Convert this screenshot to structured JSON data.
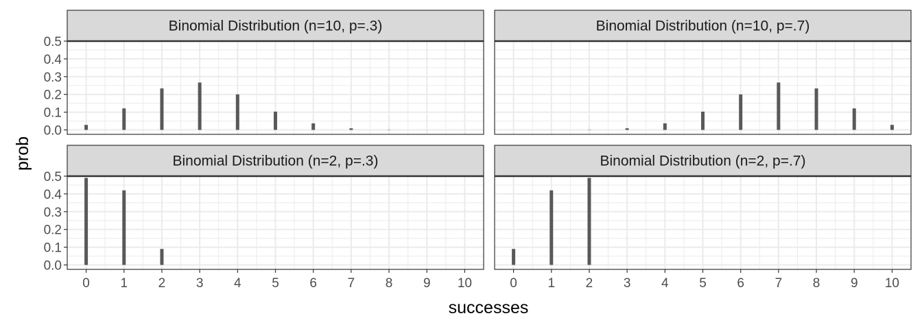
{
  "chart_data": {
    "type": "bar",
    "xlabel": "successes",
    "ylabel": "prob",
    "x_ticks": [
      0,
      1,
      2,
      3,
      4,
      5,
      6,
      7,
      8,
      9,
      10
    ],
    "y_ticks": [
      0.0,
      0.1,
      0.2,
      0.3,
      0.4,
      0.5
    ],
    "y_tick_labels": [
      "0.0",
      "0.1",
      "0.2",
      "0.3",
      "0.4",
      "0.5"
    ],
    "xlim": [
      -0.5,
      10.5
    ],
    "ylim": [
      -0.025,
      0.5
    ],
    "grid": true,
    "bar_color": "#595959",
    "strip_fill": "#d9d9d9",
    "panels": [
      {
        "title": "Binomial Distribution (n=10, p=.3)",
        "x": [
          0,
          1,
          2,
          3,
          4,
          5,
          6,
          7,
          8,
          9,
          10
        ],
        "values": [
          0.0282,
          0.1211,
          0.2335,
          0.2668,
          0.2001,
          0.1029,
          0.0368,
          0.009,
          0.0014,
          0.0001,
          0.0
        ]
      },
      {
        "title": "Binomial Distribution (n=10, p=.7)",
        "x": [
          0,
          1,
          2,
          3,
          4,
          5,
          6,
          7,
          8,
          9,
          10
        ],
        "values": [
          0.0,
          0.0001,
          0.0014,
          0.009,
          0.0368,
          0.1029,
          0.2001,
          0.2668,
          0.2335,
          0.1211,
          0.0282
        ]
      },
      {
        "title": "Binomial Distribution (n=2, p=.3)",
        "x": [
          0,
          1,
          2
        ],
        "values": [
          0.49,
          0.42,
          0.09
        ]
      },
      {
        "title": "Binomial Distribution (n=2, p=.7)",
        "x": [
          0,
          1,
          2
        ],
        "values": [
          0.09,
          0.42,
          0.49
        ]
      }
    ]
  }
}
